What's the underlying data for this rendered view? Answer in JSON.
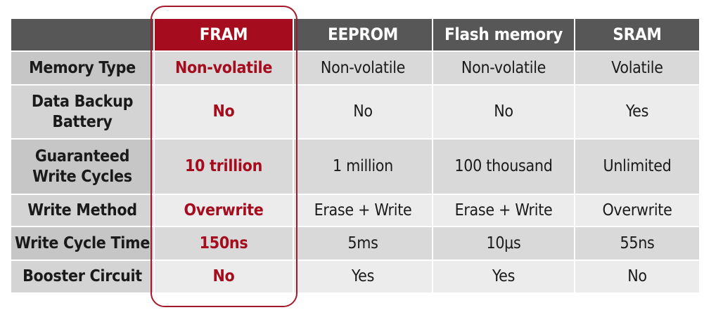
{
  "colors": {
    "accent": "#a50d1f",
    "header": "#575757"
  },
  "headers": [
    "",
    "FRAM",
    "EEPROM",
    "Flash memory",
    "SRAM"
  ],
  "rows": [
    {
      "label": "Memory Type",
      "values": [
        "Non-volatile",
        "Non-volatile",
        "Non-volatile",
        "Volatile"
      ]
    },
    {
      "label": "Data Backup Battery",
      "values": [
        "No",
        "No",
        "No",
        "Yes"
      ]
    },
    {
      "label": "Guaranteed Write Cycles",
      "values": [
        "10 trillion",
        "1 million",
        "100 thousand",
        "Unlimited"
      ]
    },
    {
      "label": "Write Method",
      "values": [
        "Overwrite",
        "Erase + Write",
        "Erase + Write",
        "Overwrite"
      ]
    },
    {
      "label": "Write Cycle Time",
      "values": [
        "150ns",
        "5ms",
        "10μs",
        "55ns"
      ]
    },
    {
      "label": "Booster Circuit",
      "values": [
        "No",
        "Yes",
        "Yes",
        "No"
      ]
    }
  ]
}
